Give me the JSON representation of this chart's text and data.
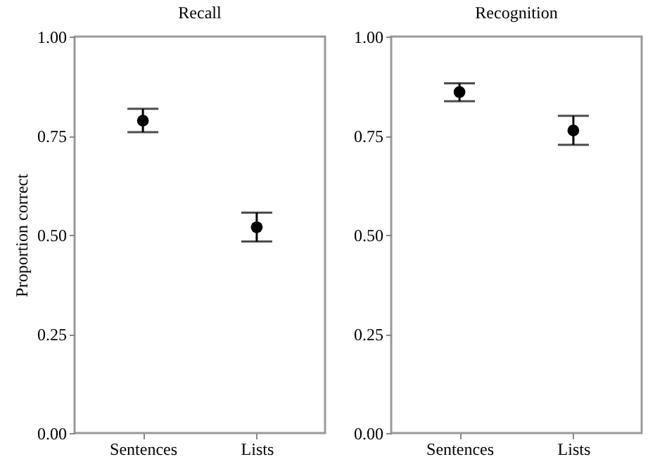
{
  "chart_data": [
    {
      "type": "scatter",
      "title": "Recall",
      "ylabel": "Proportion correct",
      "categories": [
        "Sentences",
        "Lists"
      ],
      "series": [
        {
          "color": "#000000",
          "values": [
            0.788,
            0.519
          ],
          "errors": [
            [
              0.759,
              0.818
            ],
            [
              0.483,
              0.556
            ]
          ]
        }
      ],
      "ylim": [
        0,
        1
      ],
      "yticks": [
        {
          "value": 0,
          "label": "0.00"
        },
        {
          "value": 0.25,
          "label": "0.25"
        },
        {
          "value": 0.5,
          "label": "0.50"
        },
        {
          "value": 0.75,
          "label": "0.75"
        },
        {
          "value": 1,
          "label": "1.00"
        }
      ],
      "marker": "circle",
      "grid": false
    },
    {
      "type": "scatter",
      "title": "Recognition",
      "categories": [
        "Sentences",
        "Lists"
      ],
      "series": [
        {
          "color": "#000000",
          "values": [
            0.86,
            0.763
          ],
          "errors": [
            [
              0.837,
              0.882
            ],
            [
              0.727,
              0.8
            ]
          ]
        }
      ],
      "ylim": [
        0,
        1
      ],
      "yticks": [
        {
          "value": 0,
          "label": "0.00"
        },
        {
          "value": 0.25,
          "label": "0.25"
        },
        {
          "value": 0.5,
          "label": "0.50"
        },
        {
          "value": 0.75,
          "label": "0.75"
        },
        {
          "value": 1,
          "label": "1.00"
        }
      ],
      "marker": "circle",
      "grid": false
    }
  ]
}
